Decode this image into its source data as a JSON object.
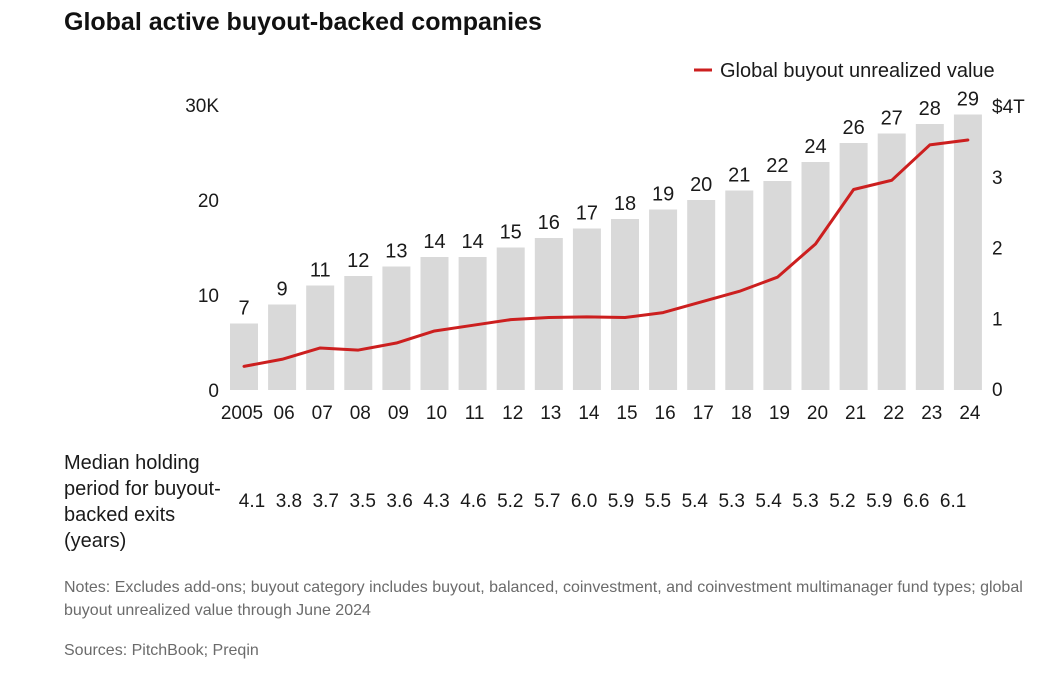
{
  "title": "Global active buyout-backed companies",
  "legend": {
    "label": "Global buyout unrealized value"
  },
  "chart_data": {
    "type": "bar+line",
    "title": "Global active buyout-backed companies",
    "categories": [
      "2005",
      "06",
      "07",
      "08",
      "09",
      "10",
      "11",
      "12",
      "13",
      "14",
      "15",
      "16",
      "17",
      "18",
      "19",
      "20",
      "21",
      "22",
      "23",
      "24"
    ],
    "bar_series": {
      "name": "Global active buyout-backed companies (K)",
      "values": [
        7,
        9,
        11,
        12,
        13,
        14,
        14,
        15,
        16,
        17,
        18,
        19,
        20,
        21,
        22,
        24,
        26,
        27,
        28,
        29
      ],
      "color": "#d9d9d9"
    },
    "line_series": {
      "name": "Global buyout unrealized value",
      "values": [
        0.32,
        0.42,
        0.58,
        0.55,
        0.65,
        0.82,
        0.9,
        0.98,
        1.01,
        1.02,
        1.01,
        1.08,
        1.23,
        1.38,
        1.58,
        2.05,
        2.82,
        2.95,
        3.45,
        3.52
      ],
      "unit": "$T",
      "color": "#cc1f1f"
    },
    "left_axis": {
      "ticks": [
        "0",
        "10",
        "20",
        "30K"
      ],
      "tick_values": [
        0,
        10,
        20,
        30
      ],
      "range": [
        0,
        30
      ]
    },
    "right_axis": {
      "ticks": [
        "0",
        "1",
        "2",
        "3",
        "$4T"
      ],
      "tick_values": [
        0,
        1,
        2,
        3,
        4
      ],
      "range": [
        0,
        4
      ]
    },
    "legend_position": "top-right"
  },
  "holding_period": {
    "label": "Median holding period for buyout-backed exits (years)",
    "values": [
      "4.1",
      "3.8",
      "3.7",
      "3.5",
      "3.6",
      "4.3",
      "4.6",
      "5.2",
      "5.7",
      "6.0",
      "5.9",
      "5.5",
      "5.4",
      "5.3",
      "5.4",
      "5.3",
      "5.2",
      "5.9",
      "6.6",
      "6.1"
    ]
  },
  "notes": "Notes: Excludes add-ons; buyout category includes buyout, balanced, coinvestment, and coinvestment multimanager fund types; global buyout unrealized value through June 2024",
  "sources": "Sources: PitchBook; Preqin"
}
